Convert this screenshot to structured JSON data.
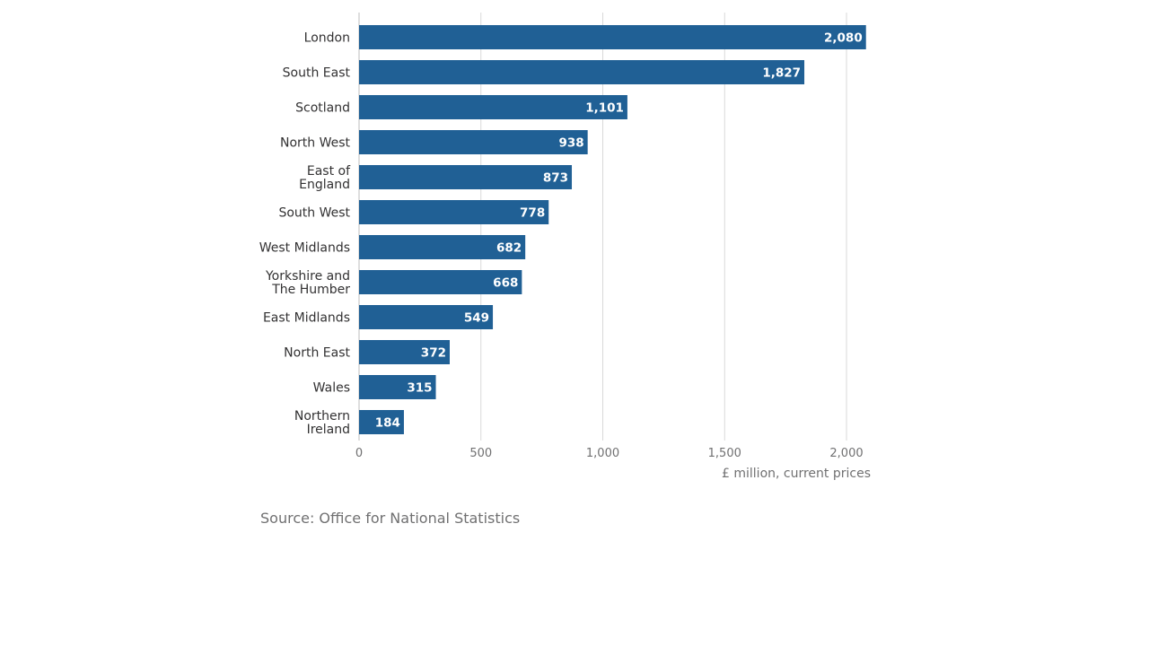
{
  "chart_data": {
    "type": "bar",
    "orientation": "horizontal",
    "categories": [
      "London",
      "South East",
      "Scotland",
      "North West",
      "East of England",
      "South West",
      "West Midlands",
      "Yorkshire and The Humber",
      "East Midlands",
      "North East",
      "Wales",
      "Northern Ireland"
    ],
    "category_lines": [
      [
        "London"
      ],
      [
        "South East"
      ],
      [
        "Scotland"
      ],
      [
        "North West"
      ],
      [
        "East of",
        "England"
      ],
      [
        "South West"
      ],
      [
        "West Midlands"
      ],
      [
        "Yorkshire and",
        "The Humber"
      ],
      [
        "East Midlands"
      ],
      [
        "North East"
      ],
      [
        "Wales"
      ],
      [
        "Northern",
        "Ireland"
      ]
    ],
    "values": [
      2080,
      1827,
      1101,
      938,
      873,
      778,
      682,
      668,
      549,
      372,
      315,
      184
    ],
    "value_labels": [
      "2,080",
      "1,827",
      "1,101",
      "938",
      "873",
      "778",
      "682",
      "668",
      "549",
      "372",
      "315",
      "184"
    ],
    "xlabel": "£ million, current prices",
    "xlim": [
      0,
      2000
    ],
    "x_ticks": [
      0,
      500,
      1000,
      1500,
      2000
    ],
    "x_tick_labels": [
      "0",
      "500",
      "1,000",
      "1,500",
      "2,000"
    ],
    "grid": true,
    "legend": "none",
    "bar_color": "#206095",
    "grid_color": "#d9d9d9"
  },
  "source": "Source: Office for National Statistics"
}
